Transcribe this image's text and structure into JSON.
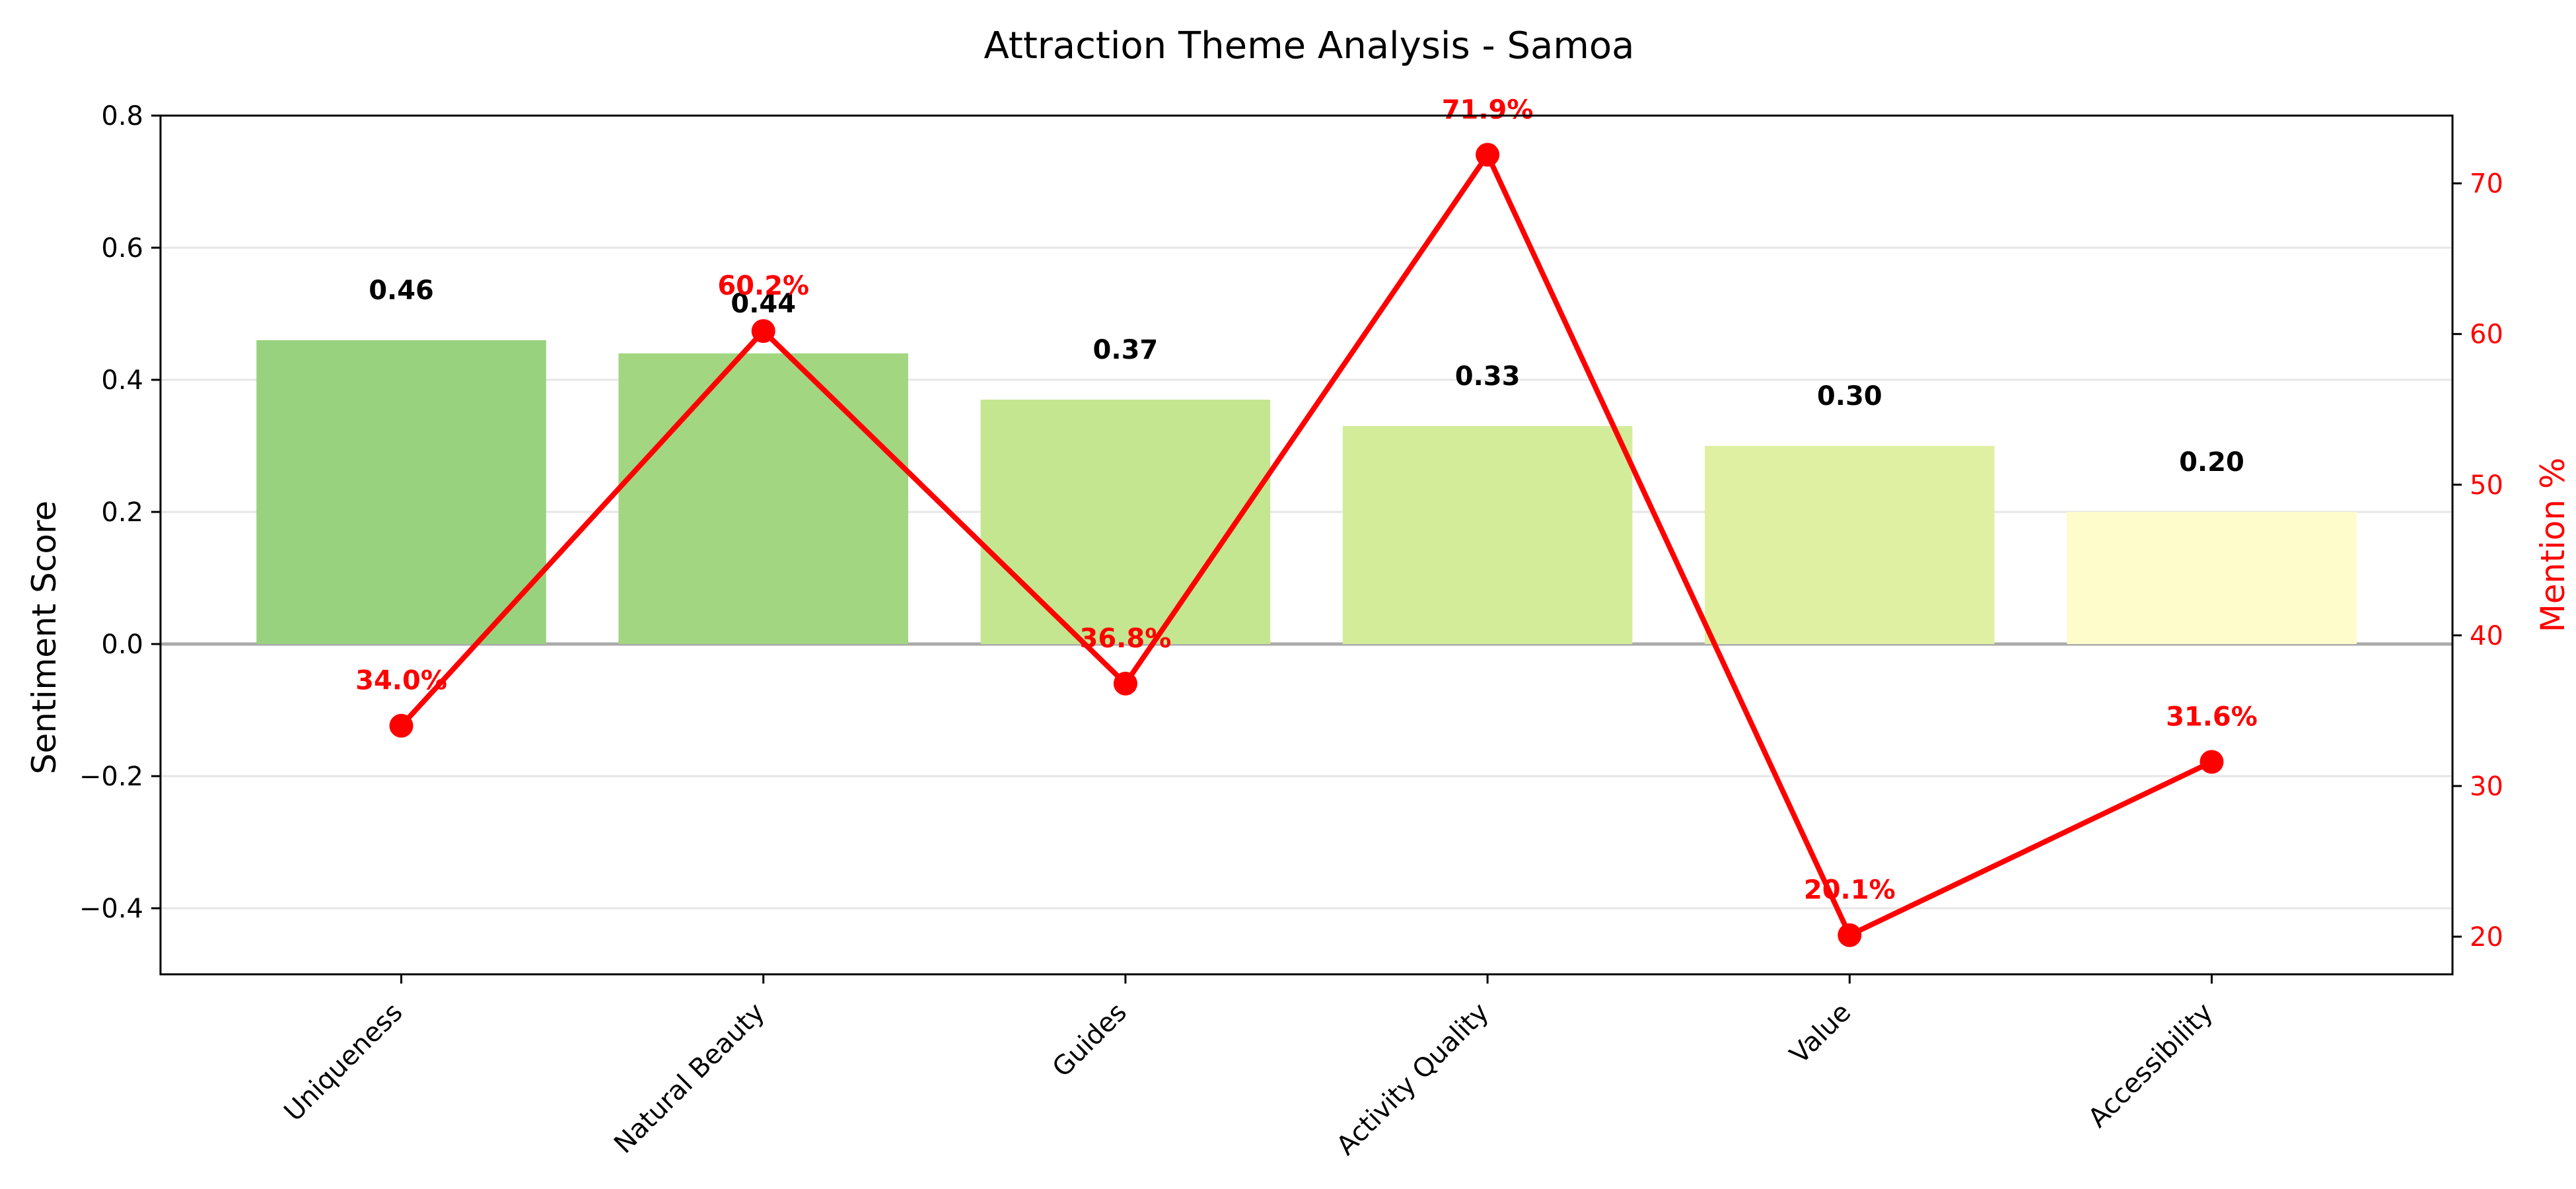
{
  "chart_data": {
    "type": "bar",
    "title": "Attraction Theme Analysis - Samoa",
    "categories": [
      "Uniqueness",
      "Natural Beauty",
      "Guides",
      "Activity Quality",
      "Value",
      "Accessibility"
    ],
    "series": [
      {
        "name": "",
        "type": "bar",
        "axis": "left",
        "values": [
          0.46,
          0.44,
          0.37,
          0.33,
          0.3,
          0.2
        ],
        "labels": [
          "0.46",
          "0.44",
          "0.37",
          "0.33",
          "0.30",
          "0.20"
        ],
        "colors": [
          "#98d27f",
          "#a2d681",
          "#c4e690",
          "#d3ec99",
          "#e0f0a2",
          "#fefccb"
        ]
      },
      {
        "name": "",
        "type": "line",
        "axis": "right",
        "values": [
          34.0,
          60.2,
          36.8,
          71.9,
          20.1,
          31.6
        ],
        "labels": [
          "34.0%",
          "60.2%",
          "36.8%",
          "71.9%",
          "20.1%",
          "31.6%"
        ],
        "color": "#ff0000"
      }
    ],
    "xlabel": "",
    "ylabel": "Sentiment Score",
    "y2label": "Mention %",
    "ylim": [
      -0.5,
      0.8
    ],
    "y2lim": [
      17.5,
      74.5
    ],
    "yticks": [
      "0.8",
      "0.6",
      "0.4",
      "0.2",
      "0.0",
      "−0.2",
      "−0.4"
    ],
    "y2ticks": [
      "70",
      "60",
      "50",
      "40",
      "30",
      "20"
    ],
    "grid": "horizontal",
    "legend": "none",
    "colors": {
      "line": "#ff0000",
      "zero_line": "#aaaaaa",
      "grid": "#e6e6e6",
      "axis": "#000000",
      "text": "#000000"
    }
  }
}
